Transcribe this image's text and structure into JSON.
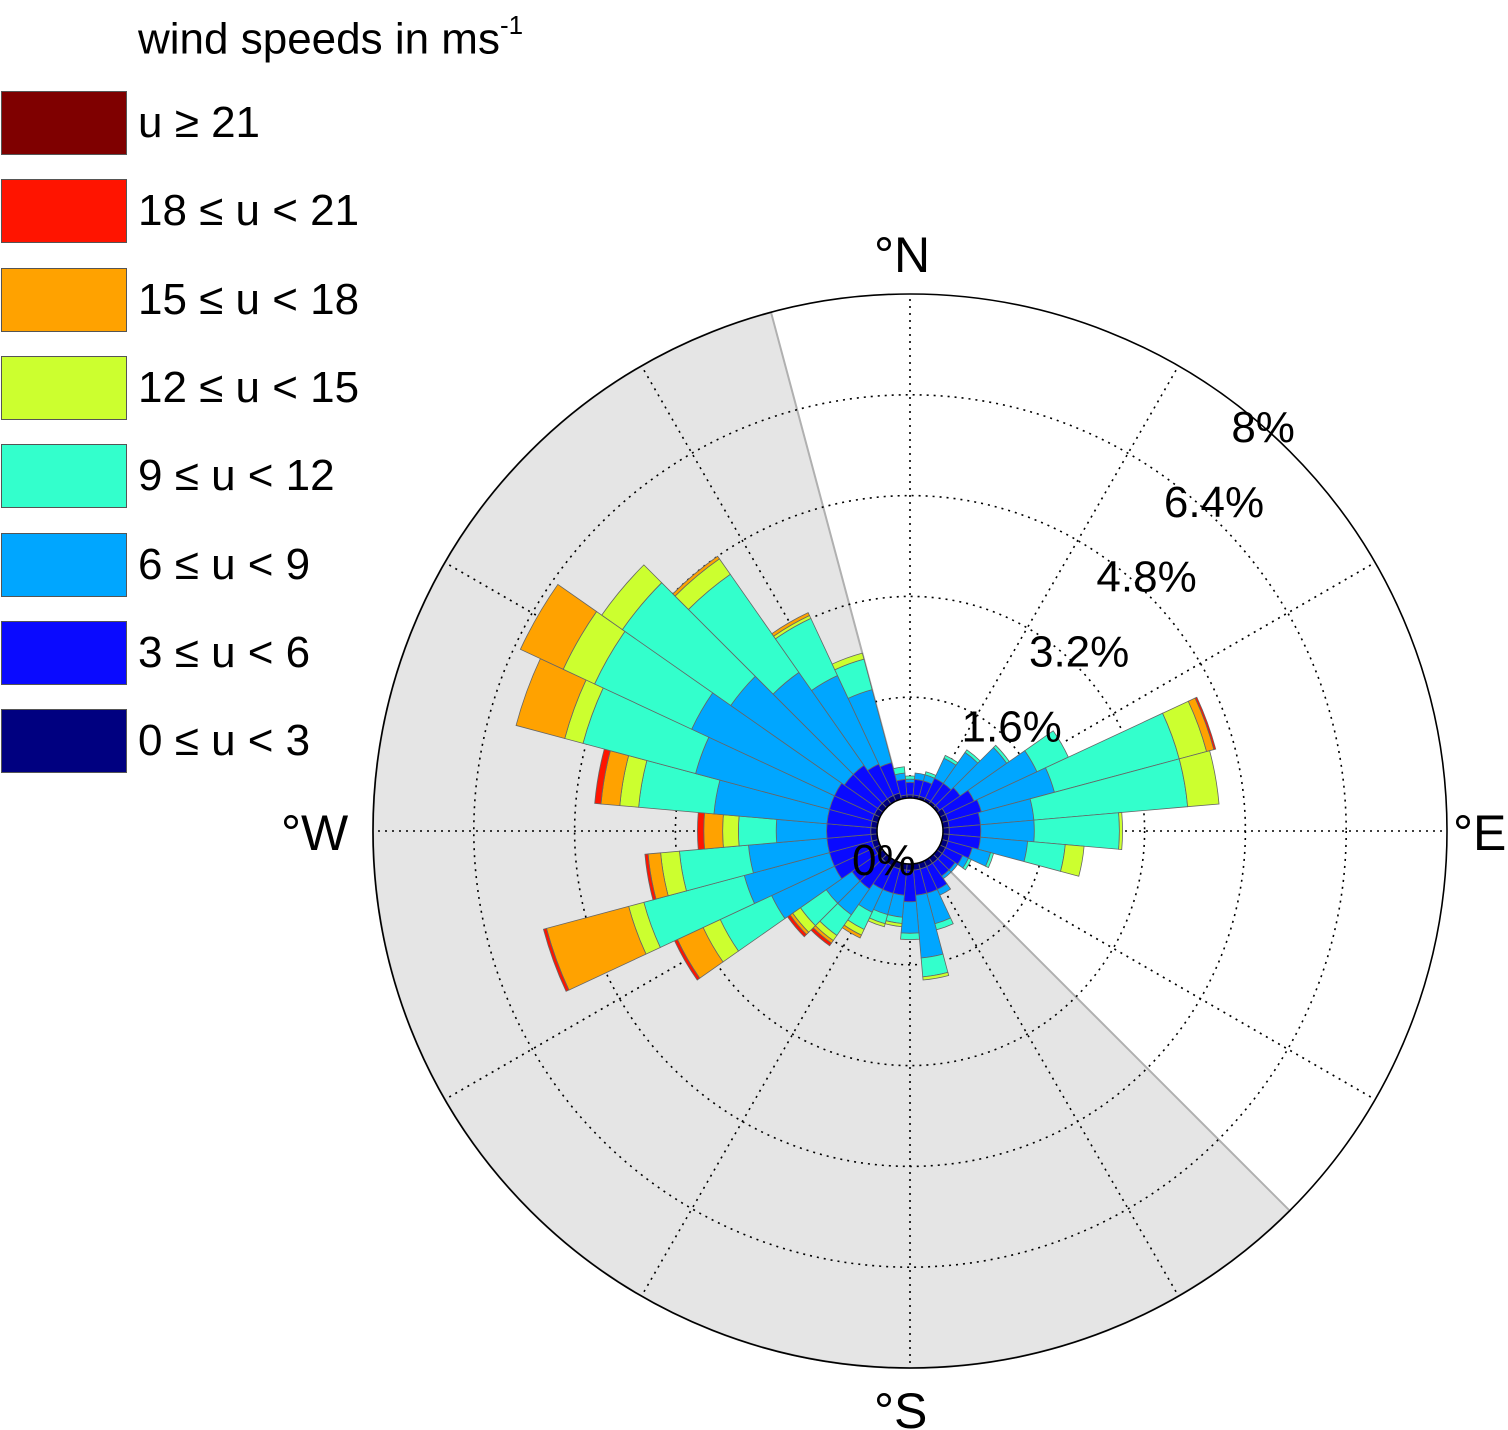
{
  "chart_data": {
    "type": "polar-stacked-bar",
    "legend": {
      "title": "wind speeds in ms",
      "title_superscript": "-1",
      "bins": [
        {
          "label": "u ≥ 21",
          "color": "#7f0000"
        },
        {
          "label": "18 ≤ u < 21",
          "color": "#ff1400"
        },
        {
          "label": "15 ≤ u < 18",
          "color": "#ffa200"
        },
        {
          "label": "12 ≤ u < 15",
          "color": "#ccff2f"
        },
        {
          "label": "9 ≤ u < 12",
          "color": "#33ffcc"
        },
        {
          "label": "6 ≤ u < 9",
          "color": "#00a6ff"
        },
        {
          "label": "3 ≤ u < 6",
          "color": "#0a0aff"
        },
        {
          "label": "0 ≤ u < 3",
          "color": "#000080"
        }
      ]
    },
    "cardinals": [
      "°N",
      "°E",
      "°S",
      "°W"
    ],
    "rings": [
      "0%",
      "1.6%",
      "3.2%",
      "4.8%",
      "6.4%",
      "8%"
    ],
    "radial_max_percent": 8,
    "shaded_sector_deg": [
      135,
      345
    ],
    "bar_width_deg": 10,
    "directions_deg": [
      0,
      10,
      20,
      30,
      40,
      50,
      60,
      70,
      80,
      90,
      100,
      110,
      120,
      130,
      140,
      150,
      160,
      170,
      180,
      190,
      200,
      210,
      220,
      230,
      240,
      250,
      260,
      270,
      280,
      290,
      300,
      310,
      320,
      330,
      340,
      350
    ],
    "bin_order": [
      "0 ≤ u < 3",
      "3 ≤ u < 6",
      "6 ≤ u < 9",
      "9 ≤ u < 12",
      "12 ≤ u < 15",
      "15 ≤ u < 18",
      "18 ≤ u < 21",
      "u ≥ 21"
    ],
    "frequencies_percent": [
      [
        0.05,
        0.2,
        0.05,
        0.05,
        0,
        0,
        0,
        0
      ],
      [
        0.05,
        0.25,
        0.1,
        0,
        0,
        0,
        0,
        0
      ],
      [
        0.05,
        0.25,
        0.1,
        0.05,
        0,
        0,
        0,
        0
      ],
      [
        0.05,
        0.35,
        0.35,
        0.05,
        0,
        0,
        0,
        0
      ],
      [
        0.05,
        0.35,
        0.6,
        0.05,
        0,
        0,
        0,
        0
      ],
      [
        0.05,
        0.4,
        0.9,
        0.05,
        0,
        0,
        0,
        0
      ],
      [
        0.1,
        0.5,
        1.1,
        0.55,
        0,
        0,
        0,
        0
      ],
      [
        0.1,
        0.55,
        1.2,
        2.05,
        0.45,
        0.12,
        0.03,
        0
      ],
      [
        0.1,
        0.5,
        0.85,
        2.45,
        0.5,
        0,
        0,
        0
      ],
      [
        0.1,
        0.5,
        0.85,
        1.35,
        0.05,
        0,
        0,
        0
      ],
      [
        0.1,
        0.5,
        0.75,
        0.6,
        0.3,
        0,
        0,
        0
      ],
      [
        0.1,
        0.4,
        0.3,
        0.05,
        0,
        0,
        0,
        0
      ],
      [
        0.1,
        0.3,
        0.1,
        0.05,
        0,
        0,
        0,
        0
      ],
      [
        0.1,
        0.25,
        0.05,
        0,
        0,
        0,
        0,
        0
      ],
      [
        0.1,
        0.25,
        0.05,
        0,
        0,
        0,
        0,
        0
      ],
      [
        0.1,
        0.4,
        0.1,
        0,
        0,
        0,
        0,
        0
      ],
      [
        0.1,
        0.4,
        0.5,
        0.1,
        0,
        0,
        0,
        0
      ],
      [
        0.1,
        0.4,
        1.0,
        0.3,
        0.05,
        0,
        0,
        0
      ],
      [
        0.1,
        0.5,
        0.5,
        0.1,
        0,
        0,
        0,
        0
      ],
      [
        0.1,
        0.4,
        0.35,
        0.1,
        0.05,
        0,
        0,
        0
      ],
      [
        0.1,
        0.4,
        0.35,
        0.15,
        0.05,
        0,
        0,
        0
      ],
      [
        0.1,
        0.4,
        0.4,
        0.3,
        0.1,
        0.05,
        0,
        0
      ],
      [
        0.1,
        0.5,
        0.5,
        0.4,
        0.1,
        0.05,
        0.05,
        0
      ],
      [
        0.1,
        0.5,
        0.5,
        0.5,
        0.15,
        0.05,
        0.05,
        0
      ],
      [
        0.1,
        0.7,
        1.1,
        0.9,
        0.3,
        0.45,
        0.05,
        0
      ],
      [
        0.1,
        0.7,
        1.4,
        1.65,
        0.25,
        1.35,
        0.05,
        0
      ],
      [
        0.1,
        0.7,
        1.25,
        1.1,
        0.3,
        0.2,
        0.05,
        0
      ],
      [
        0.1,
        0.7,
        0.8,
        0.6,
        0.25,
        0.3,
        0.1,
        0
      ],
      [
        0.1,
        0.7,
        1.8,
        1.2,
        0.3,
        0.3,
        0.1,
        0
      ],
      [
        0.1,
        0.7,
        2.2,
        1.85,
        0.3,
        0.8,
        0,
        0
      ],
      [
        0.1,
        0.7,
        2.5,
        1.7,
        0.55,
        0.75,
        0,
        0
      ],
      [
        0.1,
        0.65,
        2.2,
        2.1,
        0.4,
        0,
        0,
        0
      ],
      [
        0.1,
        0.65,
        1.8,
        1.9,
        0.3,
        0.05,
        0,
        0
      ],
      [
        0.1,
        0.55,
        1.55,
        1.0,
        0.05,
        0.05,
        0,
        0
      ],
      [
        0.1,
        0.5,
        1.2,
        0.5,
        0.1,
        0,
        0,
        0
      ],
      [
        0.05,
        0.25,
        0.1,
        0.1,
        0,
        0,
        0,
        0
      ]
    ]
  }
}
